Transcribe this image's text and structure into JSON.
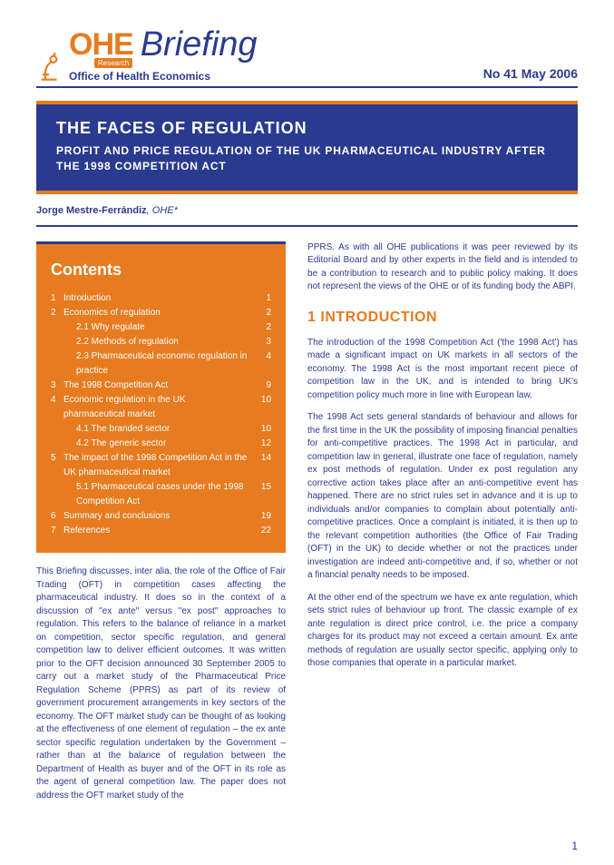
{
  "colors": {
    "orange": "#e67b1f",
    "navy": "#2a3a8f",
    "white": "#ffffff"
  },
  "header": {
    "ohe": "OHE",
    "research": "Research",
    "briefing": "Briefing",
    "org": "Office of Health Economics",
    "issue": "No 41 May 2006"
  },
  "titleBand": {
    "main": "THE FACES OF REGULATION",
    "sub": "PROFIT AND PRICE REGULATION OF THE UK PHARMACEUTICAL INDUSTRY AFTER THE 1998 COMPETITION ACT"
  },
  "author": {
    "name": "Jorge Mestre-Ferrándiz",
    "aff": ", OHE*"
  },
  "contents": {
    "heading": "Contents",
    "items": [
      {
        "n": "1",
        "t": "Introduction",
        "p": "1",
        "lvl": 0
      },
      {
        "n": "2",
        "t": "Economics of regulation",
        "p": "2",
        "lvl": 0
      },
      {
        "n": "",
        "t": "2.1 Why regulate",
        "p": "2",
        "lvl": 1
      },
      {
        "n": "",
        "t": "2.2 Methods of regulation",
        "p": "3",
        "lvl": 1
      },
      {
        "n": "",
        "t": "2.3 Pharmaceutical economic regulation in practice",
        "p": "4",
        "lvl": 1
      },
      {
        "n": "3",
        "t": "The 1998 Competition Act",
        "p": "9",
        "lvl": 0
      },
      {
        "n": "4",
        "t": "Economic regulation in the UK pharmaceutical market",
        "p": "10",
        "lvl": 0
      },
      {
        "n": "",
        "t": "4.1 The branded sector",
        "p": "10",
        "lvl": 1
      },
      {
        "n": "",
        "t": "4.2 The generic sector",
        "p": "12",
        "lvl": 1
      },
      {
        "n": "5",
        "t": "The impact of the 1998 Competition Act in the UK pharmaceutical market",
        "p": "14",
        "lvl": 0
      },
      {
        "n": "",
        "t": "5.1 Pharmaceutical cases under the 1998 Competition Act",
        "p": "15",
        "lvl": 1
      },
      {
        "n": "6",
        "t": "Summary and conclusions",
        "p": "19",
        "lvl": 0
      },
      {
        "n": "7",
        "t": "References",
        "p": "22",
        "lvl": 0
      }
    ]
  },
  "leftBody": {
    "p1": "This Briefing discusses, inter alia, the role of the Office of Fair Trading (OFT) in competition cases affecting the pharmaceutical industry. It does so in the context of a discussion of \"ex ante\" versus \"ex post\" approaches to regulation. This refers to the balance of reliance in a market on competition, sector specific regulation, and general competition law to deliver efficient outcomes. It was written prior to the OFT decision announced 30 September 2005 to carry out a market study of the Pharmaceutical Price Regulation Scheme (PPRS) as part of its review of government procurement arrangements in key sectors of the economy. The OFT market study can be thought of as looking at the effectiveness of one element of regulation – the ex ante sector specific regulation undertaken by the Government – rather than at the balance of regulation between the Department of Health as buyer and of the OFT in its role as the agent of general competition law. The paper does not address the OFT market study of the"
  },
  "rightBody": {
    "p0": "PPRS. As with all OHE publications it was peer reviewed by its Editorial Board and by other experts in the field and is intended to be a contribution to research and to public policy making. It does not represent the views of the OHE or of its funding body the ABPI.",
    "heading": "1 INTRODUCTION",
    "p1": "The introduction of the 1998 Competition Act ('the 1998 Act') has made a significant impact on UK markets in all sectors of the economy. The 1998 Act is the most important recent piece of competition law in the UK, and is intended to bring UK's competition policy much more in line with European law.",
    "p2": "The 1998 Act sets general standards of behaviour and allows for the first time in the UK the possibility of imposing financial penalties for anti-competitive practices. The 1998 Act in particular, and competition law in general, illustrate one face of regulation, namely ex post methods of regulation. Under ex post regulation any corrective action takes place after an anti-competitive event has happened. There are no strict rules set in advance and it is up to individuals and/or companies to complain about potentially anti-competitive practices. Once a complaint is initiated, it is then up to the relevant competition authorities (the Office of Fair Trading (OFT) in the UK) to decide whether or not the practices under investigation are indeed anti-competitive and, if so, whether or not a financial penalty needs to be imposed.",
    "p3": "At the other end of the spectrum we have ex ante regulation, which sets strict rules of behaviour up front. The classic example of ex ante regulation is direct price control, i.e. the price a company charges for its product may not exceed a certain amount. Ex ante methods of regulation are usually sector specific, applying only to those companies that operate in a particular market."
  },
  "pageNumber": "1"
}
